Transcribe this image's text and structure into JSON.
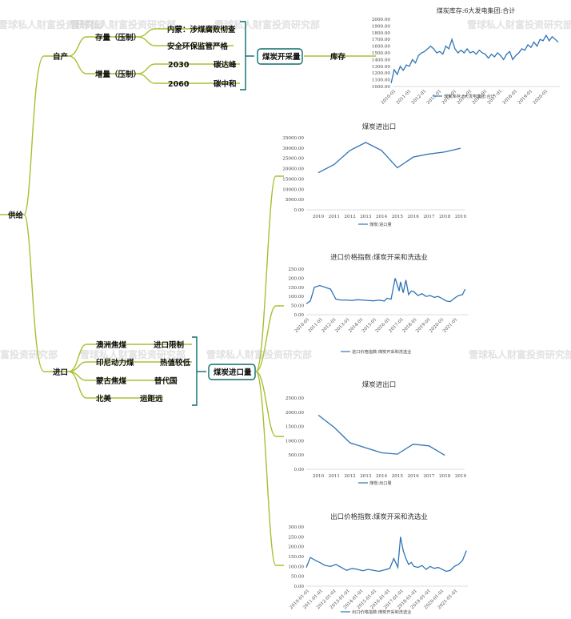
{
  "mindmap": {
    "root": "供给",
    "self_production": {
      "label": "自产",
      "stock": {
        "label": "存量（压制）",
        "items": [
          "内蒙：涉煤腐败彻查",
          "安全环保监管严格"
        ]
      },
      "increment": {
        "label": "增量（压制）",
        "items": [
          {
            "year": "2030",
            "target": "碳达峰"
          },
          {
            "year": "2060",
            "target": "碳中和"
          }
        ]
      },
      "box": "煤炭开采量",
      "inventory": "库存"
    },
    "import": {
      "label": "进口",
      "items": [
        {
          "source": "澳洲焦煤",
          "reason": "进口限制"
        },
        {
          "source": "印尼动力煤",
          "reason": "热值较低"
        },
        {
          "source": "蒙古焦煤",
          "reason": "替代国"
        },
        {
          "source": "北美",
          "reason": "运距远"
        }
      ],
      "box": "煤炭进口量"
    }
  },
  "watermark": "雪球私人财富投资研究部",
  "chart_data": [
    {
      "type": "line",
      "title": "煤炭库存:6大发电集团:合计",
      "x_ticks": [
        "2010-01",
        "2011-01",
        "2012-01",
        "2013-01",
        "2014-01",
        "2015-01",
        "2016-01",
        "2017-01",
        "2018-01",
        "2019-01",
        "2020-01"
      ],
      "y_ticks": [
        "2000.00",
        "1900.00",
        "1800.00",
        "1700.00",
        "1600.00",
        "1500.00",
        "1400.00",
        "1300.00",
        "1200.00",
        "1100.00",
        "1000.00"
      ],
      "ylim": [
        1000,
        2000
      ],
      "xlim": [
        2010,
        2021
      ],
      "series": [
        {
          "name": "煤炭库存:6大发电集团:合计",
          "x": [
            2009.9,
            2010.1,
            2010.3,
            2010.5,
            2010.7,
            2010.9,
            2011.1,
            2011.3,
            2011.5,
            2011.7,
            2011.9,
            2012.1,
            2012.3,
            2012.5,
            2012.7,
            2012.9,
            2013.1,
            2013.3,
            2013.5,
            2013.7,
            2013.9,
            2014.1,
            2014.3,
            2014.5,
            2014.7,
            2014.9,
            2015.1,
            2015.3,
            2015.5,
            2015.7,
            2015.9,
            2016.1,
            2016.3,
            2016.5,
            2016.7,
            2016.9,
            2017.1,
            2017.3,
            2017.5,
            2017.7,
            2017.9,
            2018.1,
            2018.3,
            2018.5,
            2018.7,
            2018.9,
            2019.1,
            2019.3,
            2019.5,
            2019.7,
            2019.9,
            2020.1,
            2020.3,
            2020.5,
            2020.7,
            2020.9
          ],
          "values": [
            1050,
            1250,
            1180,
            1300,
            1240,
            1320,
            1300,
            1400,
            1350,
            1460,
            1500,
            1520,
            1560,
            1600,
            1560,
            1500,
            1520,
            1480,
            1600,
            1560,
            1700,
            1560,
            1500,
            1540,
            1500,
            1560,
            1500,
            1520,
            1480,
            1540,
            1500,
            1480,
            1420,
            1480,
            1440,
            1500,
            1460,
            1400,
            1480,
            1520,
            1400,
            1460,
            1500,
            1560,
            1540,
            1620,
            1580,
            1660,
            1600,
            1700,
            1680,
            1760,
            1680,
            1740,
            1700,
            1660
          ]
        }
      ]
    },
    {
      "type": "line",
      "title": "煤炭进出口",
      "categories": [
        "2010",
        "2011",
        "2012",
        "2013",
        "2014",
        "2015",
        "2016",
        "2017",
        "2018",
        "2019"
      ],
      "y_ticks": [
        "35000.00",
        "30000.00",
        "25000.00",
        "20000.00",
        "15000.00",
        "10000.00",
        "5000.00",
        "0.00"
      ],
      "ylim": [
        0,
        35000
      ],
      "series": [
        {
          "name": "煤炭:进口量",
          "values": [
            18000,
            22000,
            28800,
            32700,
            28800,
            20400,
            25600,
            27100,
            28100,
            29900
          ]
        }
      ]
    },
    {
      "type": "line",
      "title": "进口价格指数:煤炭开采和洗选业",
      "x_ticks": [
        "2010-01",
        "2011-01",
        "2012-01",
        "2013-01",
        "2014-01",
        "2015-01",
        "2016-01",
        "2017-01",
        "2018-01",
        "2019-01",
        "2020-01",
        "2021-01"
      ],
      "y_ticks": [
        "250.00",
        "200.00",
        "150.00",
        "100.00",
        "50.00",
        "0.00"
      ],
      "ylim": [
        0,
        250
      ],
      "xlim": [
        2010,
        2022
      ],
      "series": [
        {
          "name": "进口价格指数:煤炭开采和洗选业",
          "x": [
            2010.0,
            2010.3,
            2010.6,
            2011.0,
            2011.4,
            2011.8,
            2012.2,
            2012.6,
            2013.0,
            2013.4,
            2013.8,
            2014.2,
            2014.6,
            2015.0,
            2015.4,
            2015.8,
            2016.0,
            2016.3,
            2016.6,
            2016.9,
            2017.0,
            2017.2,
            2017.4,
            2017.6,
            2017.8,
            2018.0,
            2018.3,
            2018.6,
            2018.9,
            2019.2,
            2019.5,
            2019.8,
            2020.1,
            2020.4,
            2020.7,
            2021.0,
            2021.3,
            2021.6,
            2021.8
          ],
          "values": [
            60,
            75,
            150,
            160,
            150,
            140,
            85,
            80,
            80,
            78,
            82,
            80,
            78,
            76,
            80,
            75,
            90,
            85,
            200,
            130,
            180,
            120,
            190,
            110,
            130,
            125,
            105,
            115,
            100,
            105,
            95,
            100,
            88,
            75,
            72,
            90,
            105,
            110,
            140
          ]
        }
      ]
    },
    {
      "type": "line",
      "title": "煤炭进出口",
      "categories": [
        "2010",
        "2011",
        "2012",
        "2013",
        "2014",
        "2015",
        "2016",
        "2017",
        "2018",
        "2019"
      ],
      "y_ticks": [
        "2500.00",
        "2000.00",
        "1500.00",
        "1000.00",
        "500.00",
        "0.00"
      ],
      "ylim": [
        0,
        2500
      ],
      "series": [
        {
          "name": "煤炭:出口量",
          "values": [
            1900,
            1470,
            930,
            750,
            580,
            530,
            880,
            820,
            490,
            null
          ]
        }
      ]
    },
    {
      "type": "line",
      "title": "出口价格指数:煤炭开采和洗选业",
      "x_ticks": [
        "2010-01-01",
        "2011-01-01",
        "2012-01-01",
        "2013-01-01",
        "2014-01-01",
        "2015-01-01",
        "2016-01-01",
        "2017-01-01",
        "2018-01-01",
        "2019-01-01",
        "2020-01-01",
        "2021-01-01"
      ],
      "y_ticks": [
        "300.00",
        "250.00",
        "200.00",
        "150.00",
        "100.00",
        "50.00",
        "0.00"
      ],
      "ylim": [
        0,
        300
      ],
      "xlim": [
        2010,
        2022
      ],
      "series": [
        {
          "name": "出口价格指数:煤炭开采和洗选业",
          "x": [
            2010.0,
            2010.3,
            2010.7,
            2011.0,
            2011.4,
            2011.8,
            2012.2,
            2012.6,
            2013.0,
            2013.4,
            2013.8,
            2014.2,
            2014.6,
            2015.0,
            2015.4,
            2015.8,
            2016.2,
            2016.5,
            2016.8,
            2017.0,
            2017.2,
            2017.4,
            2017.6,
            2017.8,
            2018.0,
            2018.3,
            2018.6,
            2018.9,
            2019.2,
            2019.5,
            2019.8,
            2020.1,
            2020.4,
            2020.7,
            2021.0,
            2021.3,
            2021.6,
            2021.9
          ],
          "values": [
            95,
            145,
            130,
            120,
            105,
            100,
            110,
            95,
            80,
            90,
            85,
            78,
            85,
            80,
            75,
            82,
            90,
            140,
            95,
            250,
            180,
            140,
            110,
            120,
            100,
            95,
            105,
            85,
            100,
            90,
            95,
            85,
            75,
            80,
            100,
            110,
            130,
            180
          ]
        }
      ]
    }
  ]
}
